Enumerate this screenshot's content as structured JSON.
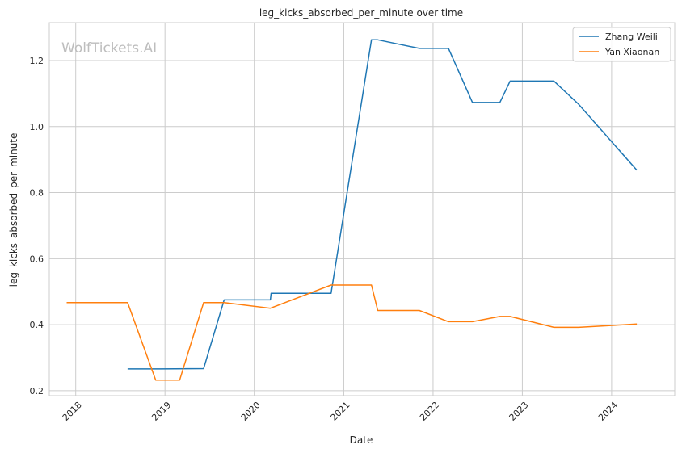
{
  "watermark": "WolfTickets.AI",
  "chart_data": {
    "type": "line",
    "title": "leg_kicks_absorbed_per_minute over time",
    "xlabel": "Date",
    "ylabel": "leg_kicks_absorbed_per_minute",
    "xlim": [
      "2017-09-15",
      "2024-09-15"
    ],
    "ylim": [
      0.185,
      1.315
    ],
    "x_ticks": [
      "2018",
      "2019",
      "2020",
      "2021",
      "2022",
      "2023",
      "2024"
    ],
    "y_ticks": [
      "0.2",
      "0.4",
      "0.6",
      "0.8",
      "1.0",
      "1.2"
    ],
    "grid": true,
    "legend_position": "top-right",
    "series": [
      {
        "name": "Zhang Weili",
        "color": "#1f77b4",
        "points": [
          [
            "2018-08-01",
            0.266
          ],
          [
            "2018-12-15",
            0.266
          ],
          [
            "2019-06-08",
            0.267
          ],
          [
            "2019-08-31",
            0.475
          ],
          [
            "2020-03-07",
            0.475
          ],
          [
            "2020-03-10",
            0.495
          ],
          [
            "2020-11-10",
            0.495
          ],
          [
            "2021-04-24",
            1.263
          ],
          [
            "2021-05-20",
            1.263
          ],
          [
            "2021-11-06",
            1.237
          ],
          [
            "2022-03-05",
            1.237
          ],
          [
            "2022-06-11",
            1.073
          ],
          [
            "2022-10-01",
            1.073
          ],
          [
            "2022-11-12",
            1.138
          ],
          [
            "2023-05-10",
            1.138
          ],
          [
            "2023-08-19",
            1.068
          ],
          [
            "2024-04-13",
            0.868
          ]
        ]
      },
      {
        "name": "Yan Xiaonan",
        "color": "#ff7f0e",
        "points": [
          [
            "2017-11-25",
            0.467
          ],
          [
            "2018-08-01",
            0.467
          ],
          [
            "2018-11-24",
            0.232
          ],
          [
            "2019-03-02",
            0.232
          ],
          [
            "2019-06-08",
            0.467
          ],
          [
            "2019-08-31",
            0.467
          ],
          [
            "2020-03-07",
            0.45
          ],
          [
            "2020-11-10",
            0.52
          ],
          [
            "2021-04-24",
            0.52
          ],
          [
            "2021-05-20",
            0.443
          ],
          [
            "2021-11-06",
            0.443
          ],
          [
            "2022-03-05",
            0.409
          ],
          [
            "2022-06-11",
            0.409
          ],
          [
            "2022-10-01",
            0.425
          ],
          [
            "2022-11-12",
            0.425
          ],
          [
            "2023-05-10",
            0.392
          ],
          [
            "2023-08-19",
            0.392
          ],
          [
            "2024-04-13",
            0.402
          ]
        ]
      }
    ]
  }
}
